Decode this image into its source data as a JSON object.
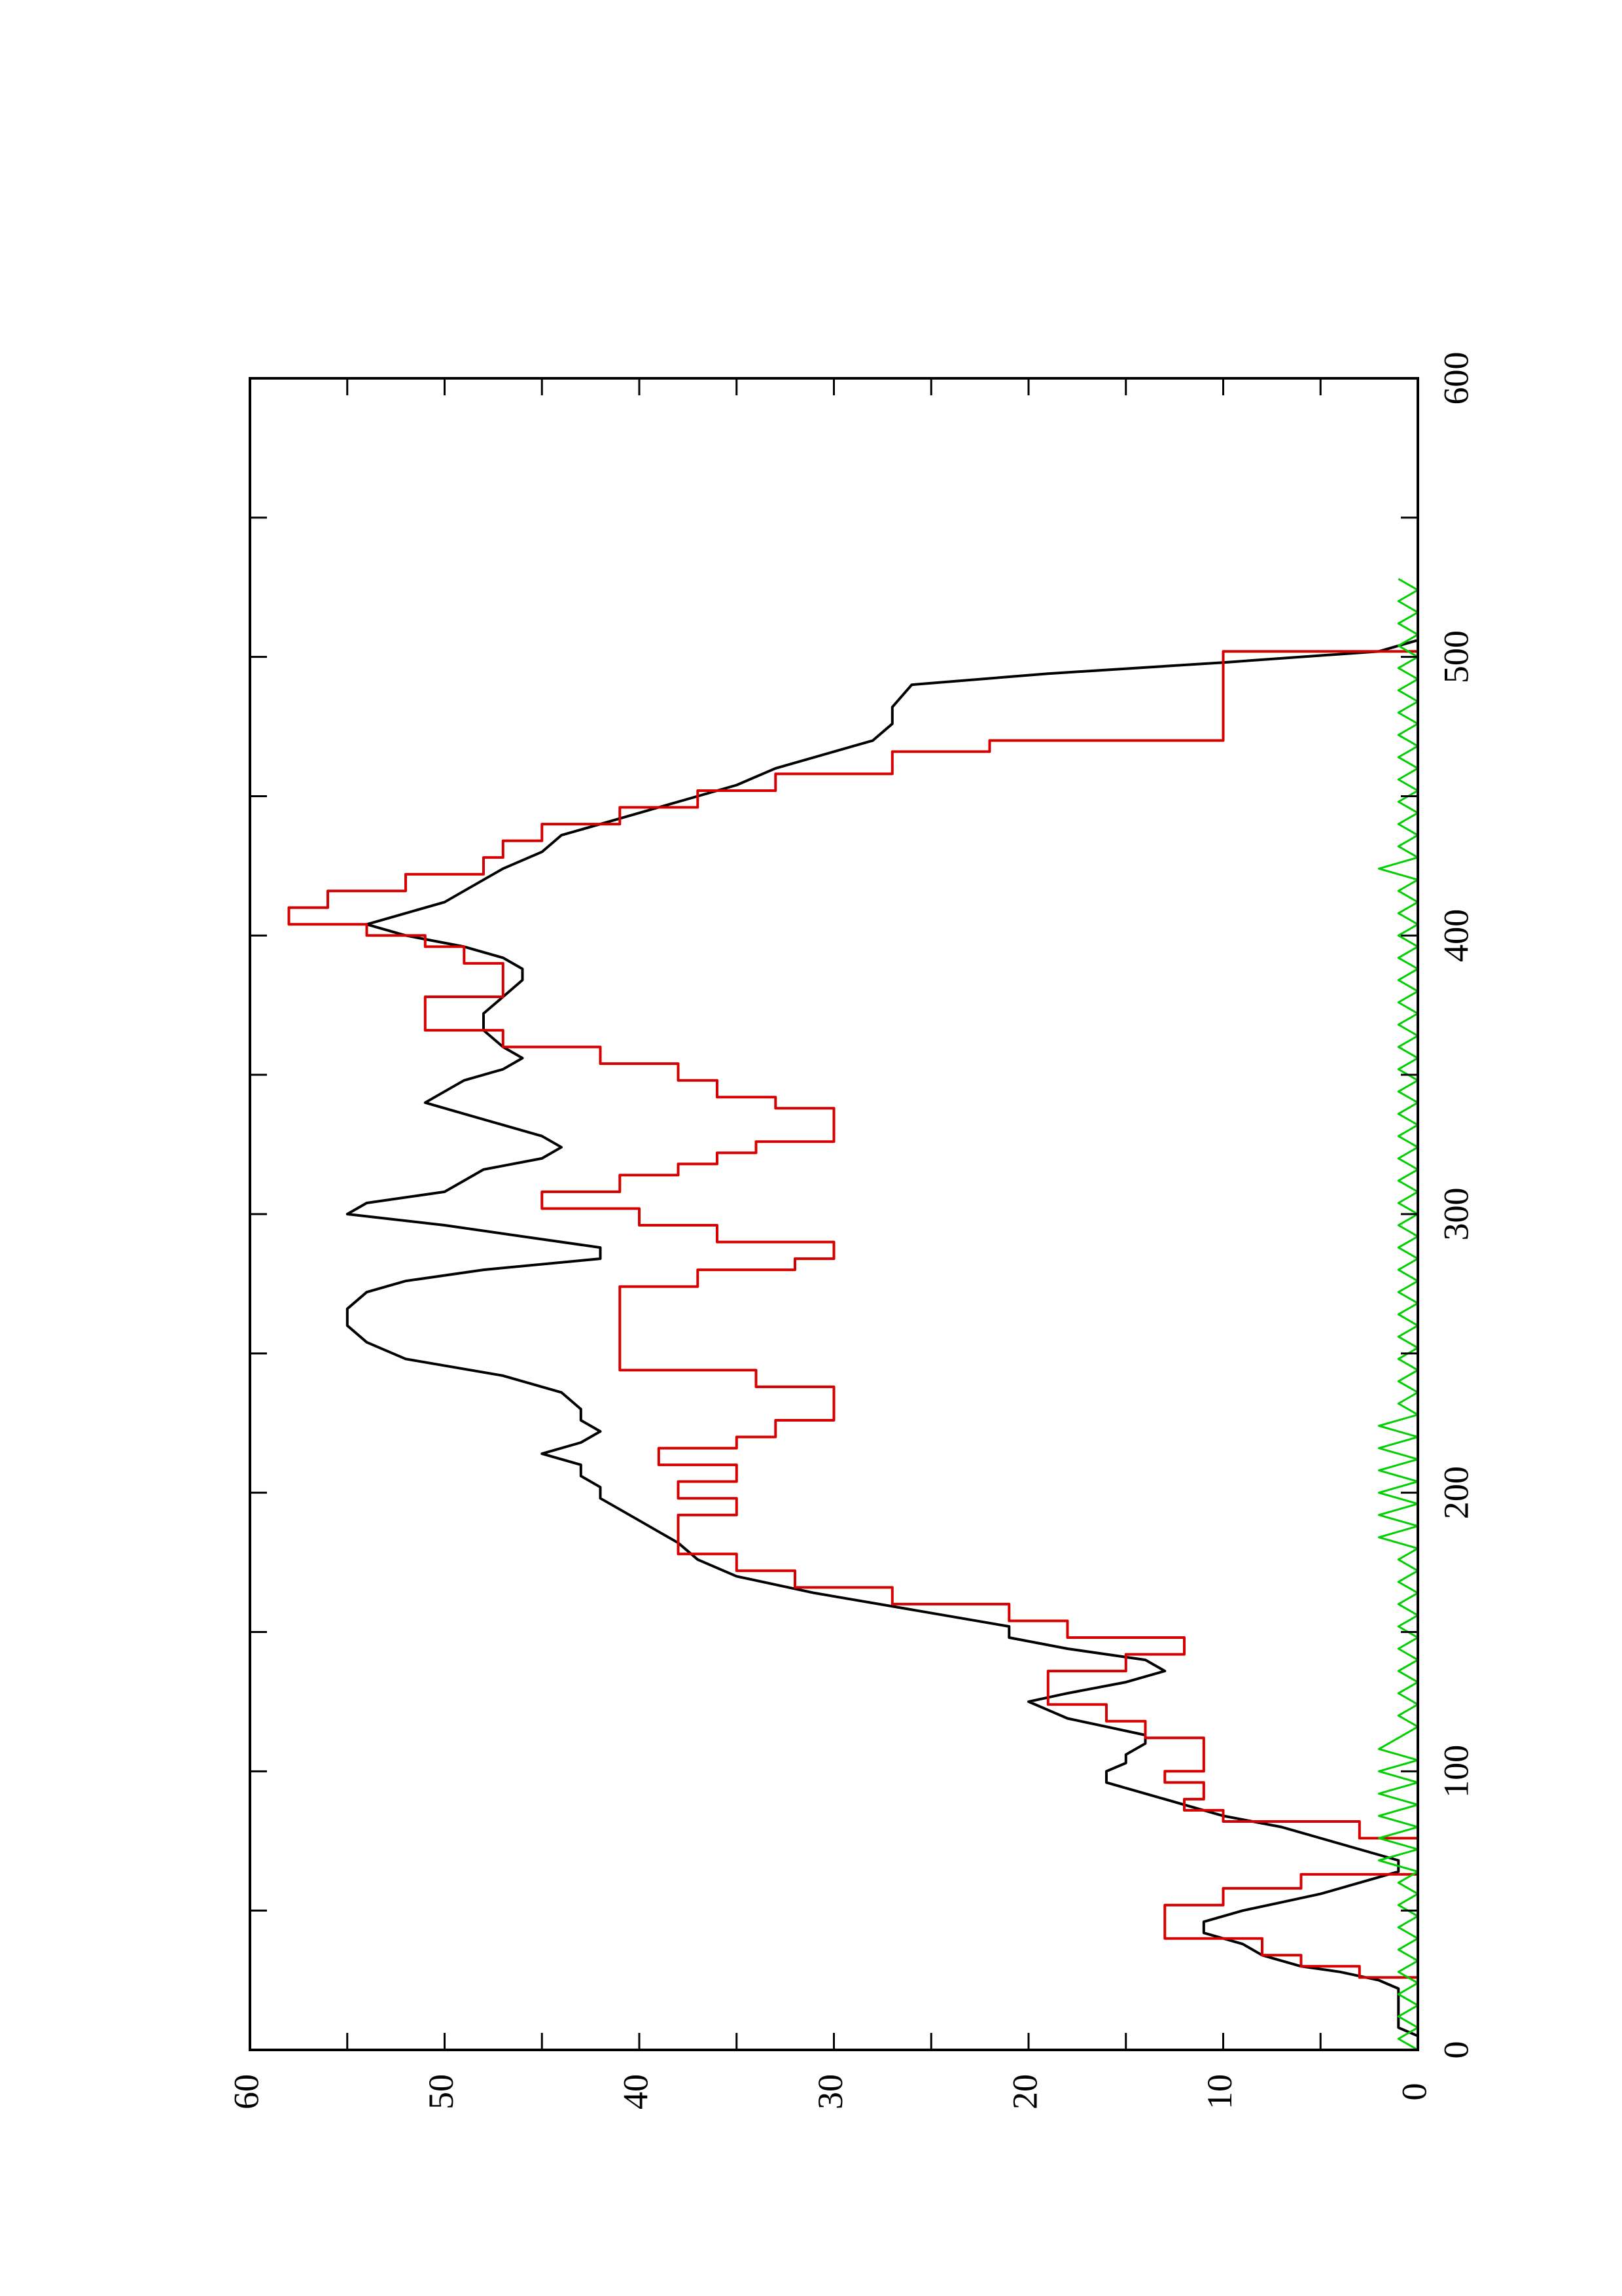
{
  "chart_data": {
    "type": "line",
    "orientation": "rotated-90-ccw",
    "title": "",
    "xlabel": "",
    "ylabel": "",
    "xlim": [
      0,
      600
    ],
    "ylim": [
      0,
      60
    ],
    "grid": false,
    "x_ticks": [
      0,
      100,
      200,
      300,
      400,
      500,
      600
    ],
    "y_ticks": [
      0,
      10,
      20,
      30,
      40,
      50,
      60
    ],
    "series": [
      {
        "color": "#000000",
        "style": "smooth",
        "points": [
          [
            0,
            0
          ],
          [
            5,
            0
          ],
          [
            8,
            1
          ],
          [
            12,
            1
          ],
          [
            18,
            1
          ],
          [
            22,
            1
          ],
          [
            25,
            2
          ],
          [
            28,
            4
          ],
          [
            30,
            6
          ],
          [
            34,
            8
          ],
          [
            38,
            9
          ],
          [
            42,
            11
          ],
          [
            46,
            11
          ],
          [
            50,
            9
          ],
          [
            53,
            7
          ],
          [
            56,
            5
          ],
          [
            60,
            3
          ],
          [
            64,
            1
          ],
          [
            68,
            1
          ],
          [
            72,
            3
          ],
          [
            76,
            5
          ],
          [
            80,
            7
          ],
          [
            84,
            10
          ],
          [
            88,
            12
          ],
          [
            92,
            14
          ],
          [
            96,
            16
          ],
          [
            100,
            16
          ],
          [
            103,
            15
          ],
          [
            106,
            15
          ],
          [
            110,
            14
          ],
          [
            113,
            14
          ],
          [
            116,
            16
          ],
          [
            119,
            18
          ],
          [
            122,
            19
          ],
          [
            125,
            20
          ],
          [
            128,
            18
          ],
          [
            132,
            15
          ],
          [
            136,
            13
          ],
          [
            140,
            14
          ],
          [
            144,
            18
          ],
          [
            148,
            21
          ],
          [
            152,
            21
          ],
          [
            158,
            26
          ],
          [
            164,
            31
          ],
          [
            170,
            35
          ],
          [
            176,
            37
          ],
          [
            182,
            38
          ],
          [
            186,
            39
          ],
          [
            190,
            40
          ],
          [
            194,
            41
          ],
          [
            198,
            42
          ],
          [
            202,
            42
          ],
          [
            206,
            43
          ],
          [
            210,
            43
          ],
          [
            214,
            45
          ],
          [
            218,
            43
          ],
          [
            222,
            42
          ],
          [
            226,
            43
          ],
          [
            230,
            43
          ],
          [
            236,
            44
          ],
          [
            242,
            47
          ],
          [
            248,
            52
          ],
          [
            254,
            54
          ],
          [
            260,
            55
          ],
          [
            266,
            55
          ],
          [
            272,
            54
          ],
          [
            276,
            52
          ],
          [
            280,
            48
          ],
          [
            284,
            42
          ],
          [
            288,
            42
          ],
          [
            292,
            46
          ],
          [
            296,
            50
          ],
          [
            300,
            55
          ],
          [
            304,
            54
          ],
          [
            308,
            50
          ],
          [
            312,
            49
          ],
          [
            316,
            48
          ],
          [
            320,
            45
          ],
          [
            324,
            44
          ],
          [
            328,
            45
          ],
          [
            332,
            47
          ],
          [
            336,
            49
          ],
          [
            340,
            51
          ],
          [
            344,
            50
          ],
          [
            348,
            49
          ],
          [
            352,
            47
          ],
          [
            356,
            46
          ],
          [
            360,
            47
          ],
          [
            366,
            48
          ],
          [
            372,
            48
          ],
          [
            378,
            47
          ],
          [
            384,
            46
          ],
          [
            388,
            46
          ],
          [
            392,
            47
          ],
          [
            396,
            49
          ],
          [
            400,
            52
          ],
          [
            404,
            54
          ],
          [
            408,
            52
          ],
          [
            412,
            50
          ],
          [
            416,
            49
          ],
          [
            420,
            48
          ],
          [
            424,
            47
          ],
          [
            430,
            45
          ],
          [
            436,
            44
          ],
          [
            442,
            41
          ],
          [
            448,
            38
          ],
          [
            454,
            35
          ],
          [
            460,
            33
          ],
          [
            466,
            30
          ],
          [
            470,
            28
          ],
          [
            476,
            27
          ],
          [
            482,
            27
          ],
          [
            490,
            26
          ],
          [
            494,
            19
          ],
          [
            498,
            10
          ],
          [
            502,
            2
          ],
          [
            506,
            0
          ],
          [
            530,
            0
          ]
        ]
      },
      {
        "color": "#d60000",
        "style": "step",
        "points": [
          [
            0,
            0
          ],
          [
            22,
            0
          ],
          [
            26,
            3
          ],
          [
            30,
            6
          ],
          [
            34,
            8
          ],
          [
            40,
            13
          ],
          [
            46,
            13
          ],
          [
            52,
            10
          ],
          [
            58,
            6
          ],
          [
            63,
            0
          ],
          [
            70,
            0
          ],
          [
            76,
            3
          ],
          [
            82,
            10
          ],
          [
            86,
            12
          ],
          [
            90,
            11
          ],
          [
            96,
            13
          ],
          [
            100,
            11
          ],
          [
            106,
            11
          ],
          [
            112,
            14
          ],
          [
            118,
            16
          ],
          [
            124,
            19
          ],
          [
            130,
            19
          ],
          [
            136,
            15
          ],
          [
            142,
            12
          ],
          [
            148,
            18
          ],
          [
            154,
            21
          ],
          [
            160,
            27
          ],
          [
            166,
            32
          ],
          [
            172,
            35
          ],
          [
            178,
            38
          ],
          [
            182,
            38
          ],
          [
            186,
            38
          ],
          [
            192,
            35
          ],
          [
            198,
            38
          ],
          [
            204,
            35
          ],
          [
            210,
            39
          ],
          [
            216,
            35
          ],
          [
            220,
            33
          ],
          [
            226,
            30
          ],
          [
            232,
            30
          ],
          [
            238,
            34
          ],
          [
            244,
            41
          ],
          [
            250,
            41
          ],
          [
            256,
            41
          ],
          [
            262,
            41
          ],
          [
            268,
            41
          ],
          [
            274,
            37
          ],
          [
            280,
            32
          ],
          [
            284,
            30
          ],
          [
            290,
            36
          ],
          [
            296,
            40
          ],
          [
            302,
            45
          ],
          [
            308,
            41
          ],
          [
            314,
            38
          ],
          [
            318,
            36
          ],
          [
            322,
            34
          ],
          [
            326,
            30
          ],
          [
            332,
            30
          ],
          [
            338,
            33
          ],
          [
            342,
            36
          ],
          [
            348,
            38
          ],
          [
            354,
            42
          ],
          [
            360,
            47
          ],
          [
            366,
            51
          ],
          [
            372,
            51
          ],
          [
            378,
            47
          ],
          [
            384,
            47
          ],
          [
            390,
            49
          ],
          [
            396,
            51
          ],
          [
            400,
            54
          ],
          [
            404,
            58
          ],
          [
            410,
            56
          ],
          [
            416,
            52
          ],
          [
            422,
            48
          ],
          [
            428,
            47
          ],
          [
            434,
            45
          ],
          [
            440,
            41
          ],
          [
            446,
            37
          ],
          [
            452,
            33
          ],
          [
            458,
            27
          ],
          [
            466,
            22
          ],
          [
            470,
            10
          ],
          [
            500,
            10
          ],
          [
            502,
            0
          ],
          [
            530,
            0
          ]
        ]
      },
      {
        "color": "#00d000",
        "style": "noise",
        "points": [
          [
            0,
            0
          ],
          [
            4,
            1
          ],
          [
            8,
            0
          ],
          [
            12,
            1
          ],
          [
            16,
            0
          ],
          [
            20,
            1
          ],
          [
            24,
            0
          ],
          [
            28,
            1
          ],
          [
            32,
            0
          ],
          [
            36,
            1
          ],
          [
            40,
            0
          ],
          [
            44,
            1
          ],
          [
            48,
            0
          ],
          [
            52,
            1
          ],
          [
            56,
            0
          ],
          [
            60,
            1
          ],
          [
            64,
            0
          ],
          [
            68,
            2
          ],
          [
            72,
            0
          ],
          [
            76,
            2
          ],
          [
            80,
            0
          ],
          [
            84,
            2
          ],
          [
            88,
            0
          ],
          [
            92,
            2
          ],
          [
            96,
            0
          ],
          [
            100,
            2
          ],
          [
            104,
            0
          ],
          [
            108,
            2
          ],
          [
            112,
            1
          ],
          [
            116,
            0
          ],
          [
            120,
            1
          ],
          [
            124,
            0
          ],
          [
            128,
            1
          ],
          [
            132,
            0
          ],
          [
            136,
            1
          ],
          [
            140,
            0
          ],
          [
            144,
            1
          ],
          [
            148,
            0
          ],
          [
            152,
            1
          ],
          [
            156,
            0
          ],
          [
            160,
            1
          ],
          [
            164,
            0
          ],
          [
            168,
            1
          ],
          [
            172,
            0
          ],
          [
            176,
            1
          ],
          [
            180,
            0
          ],
          [
            184,
            2
          ],
          [
            188,
            0
          ],
          [
            192,
            2
          ],
          [
            196,
            0
          ],
          [
            200,
            2
          ],
          [
            204,
            0
          ],
          [
            208,
            2
          ],
          [
            212,
            0
          ],
          [
            216,
            2
          ],
          [
            220,
            0
          ],
          [
            224,
            2
          ],
          [
            228,
            0
          ],
          [
            232,
            1
          ],
          [
            236,
            0
          ],
          [
            240,
            1
          ],
          [
            244,
            0
          ],
          [
            248,
            1
          ],
          [
            252,
            0
          ],
          [
            256,
            1
          ],
          [
            260,
            0
          ],
          [
            264,
            1
          ],
          [
            268,
            0
          ],
          [
            272,
            1
          ],
          [
            276,
            0
          ],
          [
            280,
            1
          ],
          [
            284,
            0
          ],
          [
            288,
            1
          ],
          [
            292,
            0
          ],
          [
            296,
            1
          ],
          [
            300,
            0
          ],
          [
            304,
            1
          ],
          [
            308,
            0
          ],
          [
            312,
            1
          ],
          [
            316,
            0
          ],
          [
            320,
            1
          ],
          [
            324,
            0
          ],
          [
            328,
            1
          ],
          [
            332,
            0
          ],
          [
            336,
            1
          ],
          [
            340,
            0
          ],
          [
            344,
            1
          ],
          [
            348,
            0
          ],
          [
            352,
            1
          ],
          [
            356,
            0
          ],
          [
            360,
            1
          ],
          [
            364,
            0
          ],
          [
            368,
            1
          ],
          [
            372,
            0
          ],
          [
            376,
            1
          ],
          [
            380,
            0
          ],
          [
            384,
            1
          ],
          [
            388,
            0
          ],
          [
            392,
            1
          ],
          [
            396,
            0
          ],
          [
            400,
            1
          ],
          [
            404,
            0
          ],
          [
            408,
            1
          ],
          [
            412,
            0
          ],
          [
            416,
            1
          ],
          [
            420,
            0
          ],
          [
            424,
            2
          ],
          [
            428,
            0
          ],
          [
            432,
            1
          ],
          [
            436,
            0
          ],
          [
            440,
            1
          ],
          [
            444,
            0
          ],
          [
            448,
            1
          ],
          [
            452,
            0
          ],
          [
            456,
            1
          ],
          [
            460,
            0
          ],
          [
            464,
            1
          ],
          [
            468,
            0
          ],
          [
            472,
            1
          ],
          [
            476,
            0
          ],
          [
            480,
            1
          ],
          [
            484,
            0
          ],
          [
            488,
            1
          ],
          [
            492,
            0
          ],
          [
            496,
            1
          ],
          [
            500,
            0
          ],
          [
            504,
            1
          ],
          [
            508,
            0
          ],
          [
            512,
            1
          ],
          [
            516,
            0
          ],
          [
            520,
            1
          ],
          [
            524,
            0
          ],
          [
            528,
            1
          ]
        ]
      }
    ]
  }
}
